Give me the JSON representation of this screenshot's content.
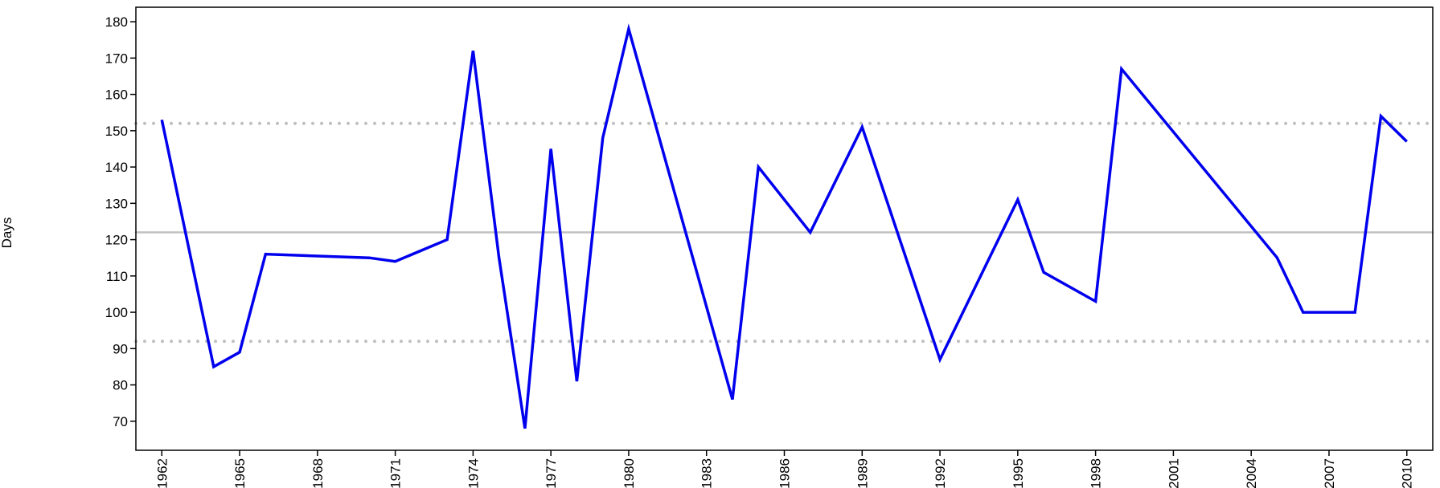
{
  "chart_data": {
    "type": "line",
    "y_label": "Days",
    "x": [
      1962,
      1964,
      1965,
      1966,
      1970,
      1971,
      1973,
      1974,
      1975,
      1976,
      1977,
      1978,
      1979,
      1980,
      1984,
      1985,
      1987,
      1989,
      1992,
      1995,
      1996,
      1998,
      1999,
      2005,
      2006,
      2008,
      2009,
      2010
    ],
    "series": [
      {
        "color": "#0000ee",
        "values": [
          153,
          85,
          89,
          116,
          115,
          114,
          120,
          172,
          115,
          68,
          145,
          81,
          148,
          178,
          76,
          140,
          122,
          151,
          87,
          131,
          111,
          103,
          167,
          115,
          100,
          100,
          154,
          147
        ]
      }
    ],
    "reference_lines": [
      {
        "value": 122,
        "style": "solid",
        "color": "#c0c0c0"
      },
      {
        "value": 152,
        "style": "dotted",
        "color": "#c0c0c0"
      },
      {
        "value": 92,
        "style": "dotted",
        "color": "#c0c0c0"
      }
    ],
    "xlim": [
      1961,
      2011
    ],
    "ylim": [
      62,
      184
    ],
    "xticks": [
      1962,
      1965,
      1968,
      1971,
      1974,
      1977,
      1980,
      1983,
      1986,
      1989,
      1992,
      1995,
      1998,
      2001,
      2004,
      2007,
      2010
    ],
    "yticks": [
      70,
      80,
      90,
      100,
      110,
      120,
      130,
      140,
      150,
      160,
      170,
      180
    ]
  }
}
